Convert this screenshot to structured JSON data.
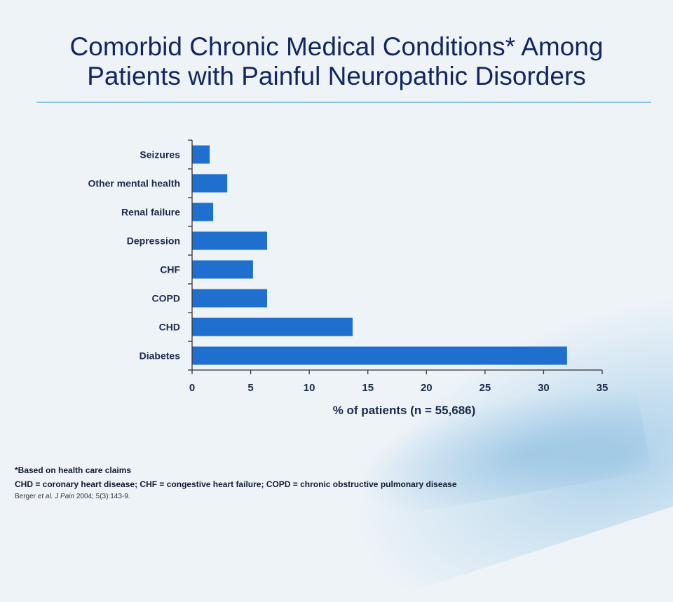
{
  "title_line1": "Comorbid Chronic Medical Conditions* Among",
  "title_line2": "Patients with Painful Neuropathic Disorders",
  "chart_data": {
    "type": "bar",
    "orientation": "horizontal",
    "categories": [
      "Seizures",
      "Other mental health",
      "Renal failure",
      "Depression",
      "CHF",
      "COPD",
      "CHD",
      "Diabetes"
    ],
    "values": [
      1.5,
      3.0,
      1.8,
      6.4,
      5.2,
      6.4,
      13.7,
      32.0
    ],
    "xlabel": "% of patients (n = 55,686)",
    "xlim": [
      0,
      35
    ],
    "xticks": [
      "0",
      "5",
      "10",
      "15",
      "20",
      "25",
      "30",
      "35"
    ],
    "bar_color": "#1f6fcf",
    "grid": false
  },
  "footnotes": {
    "line1": "*Based on health care claims",
    "line2": "CHD = coronary heart disease; CHF = congestive heart failure; COPD = chronic obstructive pulmonary disease",
    "ref_author": "Berger ",
    "ref_etal": "et al. J Pain",
    "ref_rest": " 2004; 5(3):143-9."
  }
}
